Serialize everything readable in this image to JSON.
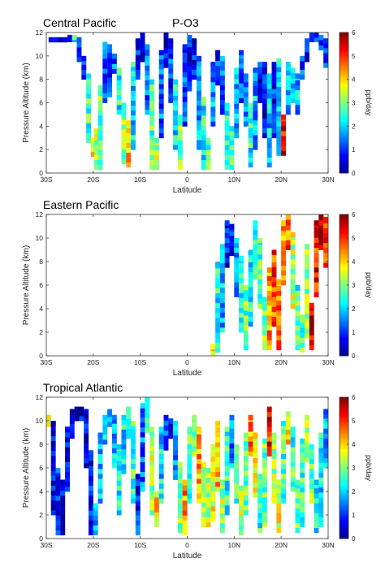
{
  "species_label": "P-O3",
  "colors": {
    "axis": "#333333",
    "box": "#000000"
  },
  "colormap_stops": [
    "#00008f",
    "#0000ff",
    "#0080ff",
    "#00ffff",
    "#80ff80",
    "#ffff00",
    "#ff8000",
    "#ff0000",
    "#800000"
  ],
  "chart_data": [
    {
      "type": "heatmap",
      "title": "Central Pacific",
      "xlabel": "Latitude",
      "ylabel": "Pressure Altitude (km)",
      "xlim": [
        -30,
        30
      ],
      "ylim": [
        0,
        12
      ],
      "xticks": [
        "30S",
        "20S",
        "10S",
        "0",
        "10N",
        "20N",
        "30N"
      ],
      "yticks": [
        "0",
        "2",
        "4",
        "6",
        "8",
        "10",
        "12"
      ],
      "colorbar": {
        "label": "ppb/day",
        "range": [
          0,
          6
        ],
        "ticks": [
          "0",
          "1",
          "2",
          "3",
          "4",
          "5",
          "6"
        ]
      },
      "profiles": [
        {
          "lat": -29,
          "bottom": 11.2,
          "top": 11.6,
          "v": 0.8
        },
        {
          "lat": -28,
          "bottom": 11.2,
          "top": 11.6,
          "v": 0.8
        },
        {
          "lat": -27,
          "bottom": 11.2,
          "top": 11.6,
          "v": 0.8
        },
        {
          "lat": -26,
          "bottom": 11.2,
          "top": 11.6,
          "v": 0.9
        },
        {
          "lat": -25,
          "bottom": 11.2,
          "top": 11.8,
          "v": 0.8
        },
        {
          "lat": -24,
          "bottom": 11.2,
          "top": 11.8,
          "v": 2.4
        },
        {
          "lat": -23,
          "bottom": 9.5,
          "top": 11.6,
          "v": 1.0
        },
        {
          "lat": -22,
          "bottom": 8.0,
          "top": 10.0,
          "v": 1.2
        },
        {
          "lat": -21,
          "bottom": 2.6,
          "top": 8.5,
          "v": 2.6
        },
        {
          "lat": -20,
          "bottom": 1.4,
          "top": 3.0,
          "v": 3.6
        },
        {
          "lat": -19.3,
          "bottom": 0.3,
          "top": 3.8,
          "v": 3.3
        },
        {
          "lat": -18.5,
          "bottom": 0.3,
          "top": 7.5,
          "v": 2.8
        },
        {
          "lat": -17.5,
          "bottom": 6.0,
          "top": 11.2,
          "v": 1.2
        },
        {
          "lat": -16.5,
          "bottom": 6.5,
          "top": 11.0,
          "v": 1.1
        },
        {
          "lat": -15.5,
          "bottom": 8.5,
          "top": 10.2,
          "v": 1.3
        },
        {
          "lat": -14.5,
          "bottom": 5.0,
          "top": 9.0,
          "v": 2.3
        },
        {
          "lat": -13.5,
          "bottom": 0.8,
          "top": 6.0,
          "v": 3.2
        },
        {
          "lat": -12.5,
          "bottom": 0.5,
          "top": 4.5,
          "v": 4.2
        },
        {
          "lat": -11.5,
          "bottom": 2.0,
          "top": 9.5,
          "v": 2.2
        },
        {
          "lat": -10.5,
          "bottom": 8.0,
          "top": 11.5,
          "v": 0.9
        },
        {
          "lat": -9.5,
          "bottom": 9.5,
          "top": 12.0,
          "v": 0.6
        },
        {
          "lat": -8.5,
          "bottom": 5.0,
          "top": 11.0,
          "v": 1.3
        },
        {
          "lat": -7.5,
          "bottom": 0.3,
          "top": 8.0,
          "v": 2.7
        },
        {
          "lat": -6.5,
          "bottom": 0.3,
          "top": 3.0,
          "v": 3.2
        },
        {
          "lat": -5.5,
          "bottom": 3.0,
          "top": 10.5,
          "v": 1.3
        },
        {
          "lat": -4.5,
          "bottom": 9.0,
          "top": 12.0,
          "v": 0.6
        },
        {
          "lat": -3.5,
          "bottom": 6.0,
          "top": 11.5,
          "v": 1.2
        },
        {
          "lat": -2.5,
          "bottom": 2.0,
          "top": 8.0,
          "v": 2.2
        },
        {
          "lat": -1.5,
          "bottom": 0.3,
          "top": 5.0,
          "v": 2.9
        },
        {
          "lat": -0.5,
          "bottom": 4.0,
          "top": 11.0,
          "v": 1.1
        },
        {
          "lat": 0.5,
          "bottom": 7.0,
          "top": 11.8,
          "v": 0.7
        },
        {
          "lat": 1.5,
          "bottom": 8.0,
          "top": 11.5,
          "v": 0.8
        },
        {
          "lat": 2.5,
          "bottom": 2.0,
          "top": 10.0,
          "v": 1.8
        },
        {
          "lat": 3.5,
          "bottom": 0.3,
          "top": 6.5,
          "v": 2.4
        },
        {
          "lat": 4.5,
          "bottom": 0.3,
          "top": 3.0,
          "v": 2.8
        },
        {
          "lat": 5.5,
          "bottom": 4.0,
          "top": 9.5,
          "v": 1.7
        },
        {
          "lat": 6.5,
          "bottom": 7.5,
          "top": 10.5,
          "v": 1.0
        },
        {
          "lat": 7.5,
          "bottom": 5.0,
          "top": 10.0,
          "v": 1.4
        },
        {
          "lat": 8.5,
          "bottom": 0.3,
          "top": 6.0,
          "v": 2.4
        },
        {
          "lat": 9.5,
          "bottom": 0.3,
          "top": 4.0,
          "v": 2.7
        },
        {
          "lat": 10.5,
          "bottom": 3.0,
          "top": 9.0,
          "v": 2.0
        },
        {
          "lat": 11.5,
          "bottom": 6.0,
          "top": 10.5,
          "v": 1.1
        },
        {
          "lat": 12.5,
          "bottom": 4.0,
          "top": 8.5,
          "v": 1.6
        },
        {
          "lat": 13.5,
          "bottom": 0.5,
          "top": 6.0,
          "v": 2.4
        },
        {
          "lat": 14.5,
          "bottom": 2.0,
          "top": 9.0,
          "v": 1.8
        },
        {
          "lat": 15.5,
          "bottom": 6.0,
          "top": 9.5,
          "v": 0.8
        },
        {
          "lat": 16.5,
          "bottom": 3.0,
          "top": 9.5,
          "v": 0.7
        },
        {
          "lat": 17.5,
          "bottom": 0.5,
          "top": 8.5,
          "v": 1.9
        },
        {
          "lat": 18.5,
          "bottom": 3.0,
          "top": 9.5,
          "v": 0.8
        },
        {
          "lat": 19.5,
          "bottom": 1.5,
          "top": 9.8,
          "v": 2.2
        },
        {
          "lat": 20.5,
          "bottom": 1.5,
          "top": 5.0,
          "v": 5.2
        },
        {
          "lat": 21.5,
          "bottom": 5.0,
          "top": 9.5,
          "v": 1.9
        },
        {
          "lat": 22.5,
          "bottom": 6.0,
          "top": 9.0,
          "v": 1.6
        },
        {
          "lat": 23.5,
          "bottom": 5.0,
          "top": 8.5,
          "v": 1.8
        },
        {
          "lat": 24.5,
          "bottom": 8.0,
          "top": 10.0,
          "v": 1.1
        },
        {
          "lat": 25.5,
          "bottom": 9.5,
          "top": 11.5,
          "v": 0.8
        },
        {
          "lat": 26.5,
          "bottom": 11.2,
          "top": 12.0,
          "v": 0.9
        },
        {
          "lat": 27.5,
          "bottom": 11.2,
          "top": 12.0,
          "v": 1.2
        },
        {
          "lat": 28.5,
          "bottom": 10.5,
          "top": 11.8,
          "v": 1.1
        },
        {
          "lat": 29.5,
          "bottom": 9.0,
          "top": 11.5,
          "v": 1.3
        }
      ]
    },
    {
      "type": "heatmap",
      "title": "Eastern Pacific",
      "xlabel": "Latitude",
      "ylabel": "Pressure Altitude (km)",
      "xlim": [
        -30,
        30
      ],
      "ylim": [
        0,
        12
      ],
      "xticks": [
        "30S",
        "20S",
        "10S",
        "0",
        "10N",
        "20N",
        "30N"
      ],
      "yticks": [
        "0",
        "2",
        "4",
        "6",
        "8",
        "10",
        "12"
      ],
      "colorbar": {
        "label": "ppb/day",
        "range": [
          0,
          6
        ],
        "ticks": [
          "0",
          "1",
          "2",
          "3",
          "4",
          "5",
          "6"
        ]
      },
      "profiles": [
        {
          "lat": 5.5,
          "bottom": 0.0,
          "top": 1.0,
          "v": 3.6
        },
        {
          "lat": 6.5,
          "bottom": 0.3,
          "top": 8.0,
          "v": 2.4
        },
        {
          "lat": 7.5,
          "bottom": 2.0,
          "top": 9.5,
          "v": 1.8
        },
        {
          "lat": 8.5,
          "bottom": 7.5,
          "top": 11.5,
          "v": 0.7
        },
        {
          "lat": 9.5,
          "bottom": 8.5,
          "top": 11.2,
          "v": 0.8
        },
        {
          "lat": 10.5,
          "bottom": 5.0,
          "top": 10.0,
          "v": 1.7
        },
        {
          "lat": 11.5,
          "bottom": 2.0,
          "top": 8.5,
          "v": 2.4
        },
        {
          "lat": 12.5,
          "bottom": 0.5,
          "top": 6.0,
          "v": 2.8
        },
        {
          "lat": 13.5,
          "bottom": 2.5,
          "top": 9.0,
          "v": 2.3
        },
        {
          "lat": 14.5,
          "bottom": 6.5,
          "top": 11.5,
          "v": 2.7
        },
        {
          "lat": 15.5,
          "bottom": 4.0,
          "top": 10.0,
          "v": 2.6
        },
        {
          "lat": 16.5,
          "bottom": 0.5,
          "top": 5.0,
          "v": 2.9
        },
        {
          "lat": 17.5,
          "bottom": 0.5,
          "top": 7.5,
          "v": 4.3
        },
        {
          "lat": 18.5,
          "bottom": 2.5,
          "top": 9.0,
          "v": 4.9
        },
        {
          "lat": 19.5,
          "bottom": 0.5,
          "top": 6.5,
          "v": 4.6
        },
        {
          "lat": 20.5,
          "bottom": 6.0,
          "top": 11.5,
          "v": 4.1
        },
        {
          "lat": 21.5,
          "bottom": 9.0,
          "top": 12.0,
          "v": 4.7
        },
        {
          "lat": 22.5,
          "bottom": 4.0,
          "top": 10.5,
          "v": 3.4
        },
        {
          "lat": 23.5,
          "bottom": 0.5,
          "top": 6.0,
          "v": 2.6
        },
        {
          "lat": 24.5,
          "bottom": 0.3,
          "top": 3.5,
          "v": 2.8
        },
        {
          "lat": 25.5,
          "bottom": 1.5,
          "top": 9.5,
          "v": 3.1
        },
        {
          "lat": 26.5,
          "bottom": 0.5,
          "top": 4.5,
          "v": 5.7
        },
        {
          "lat": 27.5,
          "bottom": 5.0,
          "top": 11.5,
          "v": 5.2
        },
        {
          "lat": 28.5,
          "bottom": 9.0,
          "top": 12.0,
          "v": 5.9
        },
        {
          "lat": 29.5,
          "bottom": 7.5,
          "top": 11.8,
          "v": 4.9
        }
      ]
    },
    {
      "type": "heatmap",
      "title": "Tropical Atlantic",
      "xlabel": "Latitude",
      "ylabel": "Pressure Altitude (km)",
      "xlim": [
        -30,
        30
      ],
      "ylim": [
        0,
        12
      ],
      "xticks": [
        "30S",
        "20S",
        "10S",
        "0",
        "10N",
        "20N",
        "30N"
      ],
      "yticks": [
        "0",
        "2",
        "4",
        "6",
        "8",
        "10",
        "12"
      ],
      "colorbar": {
        "label": "ppb/day",
        "range": [
          0,
          6
        ],
        "ticks": [
          "0",
          "1",
          "2",
          "3",
          "4",
          "5",
          "6"
        ]
      },
      "profiles": [
        {
          "lat": -29.5,
          "bottom": 9.5,
          "top": 10.5,
          "v": 3.6
        },
        {
          "lat": -28.5,
          "bottom": 2.0,
          "top": 10.0,
          "v": 0.6
        },
        {
          "lat": -27.5,
          "bottom": 0.3,
          "top": 6.0,
          "v": 0.9
        },
        {
          "lat": -26.5,
          "bottom": 0.3,
          "top": 5.0,
          "v": 0.7
        },
        {
          "lat": -25.5,
          "bottom": 4.0,
          "top": 9.5,
          "v": 0.5
        },
        {
          "lat": -24.5,
          "bottom": 8.5,
          "top": 11.0,
          "v": 0.6
        },
        {
          "lat": -23.5,
          "bottom": 10.0,
          "top": 11.2,
          "v": 0.5
        },
        {
          "lat": -22.5,
          "bottom": 10.0,
          "top": 11.2,
          "v": 0.6
        },
        {
          "lat": -21.5,
          "bottom": 6.0,
          "top": 11.0,
          "v": 0.6
        },
        {
          "lat": -20.5,
          "bottom": 0.3,
          "top": 7.5,
          "v": 0.7
        },
        {
          "lat": -19.5,
          "bottom": 0.3,
          "top": 3.0,
          "v": 1.6
        },
        {
          "lat": -18.5,
          "bottom": 3.0,
          "top": 9.0,
          "v": 2.0
        },
        {
          "lat": -17.5,
          "bottom": 8.0,
          "top": 10.5,
          "v": 1.7
        },
        {
          "lat": -16.5,
          "bottom": 9.5,
          "top": 11.0,
          "v": 1.4
        },
        {
          "lat": -15.5,
          "bottom": 6.0,
          "top": 10.5,
          "v": 1.8
        },
        {
          "lat": -14.5,
          "bottom": 2.0,
          "top": 8.0,
          "v": 2.4
        },
        {
          "lat": -13.5,
          "bottom": 5.5,
          "top": 10.5,
          "v": 2.2
        },
        {
          "lat": -12.5,
          "bottom": 8.5,
          "top": 11.2,
          "v": 2.5
        },
        {
          "lat": -11.5,
          "bottom": 3.0,
          "top": 10.0,
          "v": 2.6
        },
        {
          "lat": -10.5,
          "bottom": 0.3,
          "top": 5.5,
          "v": 0.9
        },
        {
          "lat": -9.5,
          "bottom": 4.0,
          "top": 11.5,
          "v": 1.4
        },
        {
          "lat": -8.5,
          "bottom": 9.0,
          "top": 12.0,
          "v": 2.6
        },
        {
          "lat": -7.5,
          "bottom": 2.0,
          "top": 9.5,
          "v": 3.3
        },
        {
          "lat": -6.5,
          "bottom": 1.0,
          "top": 4.0,
          "v": 4.1
        },
        {
          "lat": -5.5,
          "bottom": 3.0,
          "top": 9.5,
          "v": 2.1
        },
        {
          "lat": -4.5,
          "bottom": 7.5,
          "top": 10.5,
          "v": 1.1
        },
        {
          "lat": -3.5,
          "bottom": 8.5,
          "top": 10.2,
          "v": 0.9
        },
        {
          "lat": -2.5,
          "bottom": 5.0,
          "top": 10.0,
          "v": 1.6
        },
        {
          "lat": -1.5,
          "bottom": 0.5,
          "top": 6.5,
          "v": 2.9
        },
        {
          "lat": -0.5,
          "bottom": 0.3,
          "top": 5.0,
          "v": 4.3
        },
        {
          "lat": 0.5,
          "bottom": 3.0,
          "top": 9.5,
          "v": 2.6
        },
        {
          "lat": 1.5,
          "bottom": 7.0,
          "top": 10.5,
          "v": 3.1
        },
        {
          "lat": 2.5,
          "bottom": 3.0,
          "top": 9.5,
          "v": 4.2
        },
        {
          "lat": 3.5,
          "bottom": 1.0,
          "top": 6.5,
          "v": 3.5
        },
        {
          "lat": 4.5,
          "bottom": 1.0,
          "top": 6.0,
          "v": 3.4
        },
        {
          "lat": 5.5,
          "bottom": 1.5,
          "top": 8.0,
          "v": 3.6
        },
        {
          "lat": 6.5,
          "bottom": 4.0,
          "top": 10.0,
          "v": 4.1
        },
        {
          "lat": 7.5,
          "bottom": 0.5,
          "top": 5.0,
          "v": 3.3
        },
        {
          "lat": 8.5,
          "bottom": 2.0,
          "top": 9.5,
          "v": 2.4
        },
        {
          "lat": 9.5,
          "bottom": 6.0,
          "top": 10.5,
          "v": 1.5
        },
        {
          "lat": 10.5,
          "bottom": 3.0,
          "top": 8.0,
          "v": 2.6
        },
        {
          "lat": 11.5,
          "bottom": 0.3,
          "top": 4.5,
          "v": 3.4
        },
        {
          "lat": 12.5,
          "bottom": 2.0,
          "top": 9.0,
          "v": 2.9
        },
        {
          "lat": 13.5,
          "bottom": 7.0,
          "top": 10.5,
          "v": 4.4
        },
        {
          "lat": 14.5,
          "bottom": 3.5,
          "top": 9.0,
          "v": 4.0
        },
        {
          "lat": 15.5,
          "bottom": 0.5,
          "top": 5.5,
          "v": 2.5
        },
        {
          "lat": 16.5,
          "bottom": 1.0,
          "top": 8.5,
          "v": 2.9
        },
        {
          "lat": 17.5,
          "bottom": 7.0,
          "top": 11.2,
          "v": 5.2
        },
        {
          "lat": 18.5,
          "bottom": 3.0,
          "top": 9.0,
          "v": 3.2
        },
        {
          "lat": 19.5,
          "bottom": 0.5,
          "top": 5.0,
          "v": 3.6
        },
        {
          "lat": 20.5,
          "bottom": 3.0,
          "top": 10.0,
          "v": 2.7
        },
        {
          "lat": 21.5,
          "bottom": 8.0,
          "top": 10.8,
          "v": 3.9
        },
        {
          "lat": 22.5,
          "bottom": 4.0,
          "top": 9.5,
          "v": 2.6
        },
        {
          "lat": 23.5,
          "bottom": 0.5,
          "top": 5.0,
          "v": 2.8
        },
        {
          "lat": 24.5,
          "bottom": 1.0,
          "top": 8.5,
          "v": 2.6
        },
        {
          "lat": 25.5,
          "bottom": 6.5,
          "top": 10.5,
          "v": 3.1
        },
        {
          "lat": 26.5,
          "bottom": 3.0,
          "top": 8.0,
          "v": 2.9
        },
        {
          "lat": 27.5,
          "bottom": 0.5,
          "top": 5.0,
          "v": 2.4
        },
        {
          "lat": 28.5,
          "bottom": 1.0,
          "top": 9.0,
          "v": 2.1
        },
        {
          "lat": 29.5,
          "bottom": 6.0,
          "top": 11.0,
          "v": 1.8
        }
      ]
    }
  ]
}
